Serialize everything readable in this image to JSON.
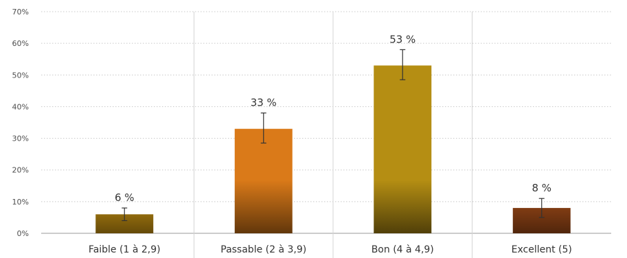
{
  "chart_data": {
    "type": "bar",
    "categories": [
      "Faible (1 à 2,9)",
      "Passable (2 à 3,9)",
      "Bon (4 à 4,9)",
      "Excellent (5)"
    ],
    "values": [
      6,
      33,
      53,
      8
    ],
    "value_labels": [
      "6 %",
      "33 %",
      "53 %",
      "8 %"
    ],
    "error_bars": [
      [
        4,
        8
      ],
      [
        28.5,
        38
      ],
      [
        48.5,
        58
      ],
      [
        5,
        11
      ]
    ],
    "y_ticks": [
      0,
      10,
      20,
      30,
      40,
      50,
      60,
      70
    ],
    "y_tick_labels": [
      "0%",
      "10%",
      "20%",
      "30%",
      "40%",
      "50%",
      "60%",
      "70%"
    ],
    "ylim": [
      0,
      70
    ],
    "title": "",
    "xlabel": "",
    "ylabel": "",
    "grid": true,
    "legend": "none",
    "colors": [
      "#e0a514",
      "#da7a19",
      "#b58e13",
      "#b4541b"
    ]
  }
}
